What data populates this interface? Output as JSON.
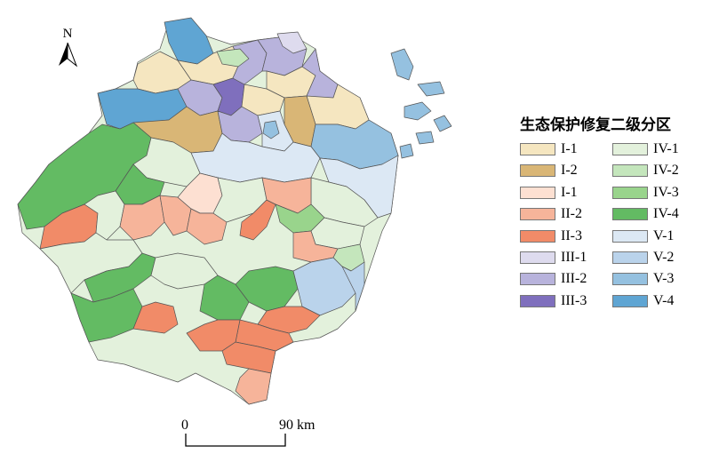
{
  "legend": {
    "title": "生态保护修复二级分区",
    "items": [
      {
        "label": "I-1",
        "color": "#f5e6c0"
      },
      {
        "label": "I-2",
        "color": "#d9b676"
      },
      {
        "label": "I-1",
        "color": "#fde0d2"
      },
      {
        "label": "II-2",
        "color": "#f6b49a"
      },
      {
        "label": "II-3",
        "color": "#f18b68"
      },
      {
        "label": "III-1",
        "color": "#dedbee"
      },
      {
        "label": "III-2",
        "color": "#b8b3dc"
      },
      {
        "label": "III-3",
        "color": "#7f6fbd"
      },
      {
        "label": "IV-1",
        "color": "#e3f1dc"
      },
      {
        "label": "IV-2",
        "color": "#c4e6bc"
      },
      {
        "label": "IV-3",
        "color": "#99d48c"
      },
      {
        "label": "IV-4",
        "color": "#63bb63"
      },
      {
        "label": "V-1",
        "color": "#dce8f4"
      },
      {
        "label": "V-2",
        "color": "#bad3eb"
      },
      {
        "label": "V-3",
        "color": "#95c1e0"
      },
      {
        "label": "V-4",
        "color": "#5fa5d3"
      }
    ]
  },
  "north_arrow": {
    "label": "N"
  },
  "scale_bar": {
    "start_label": "0",
    "end_label": "90 km"
  }
}
